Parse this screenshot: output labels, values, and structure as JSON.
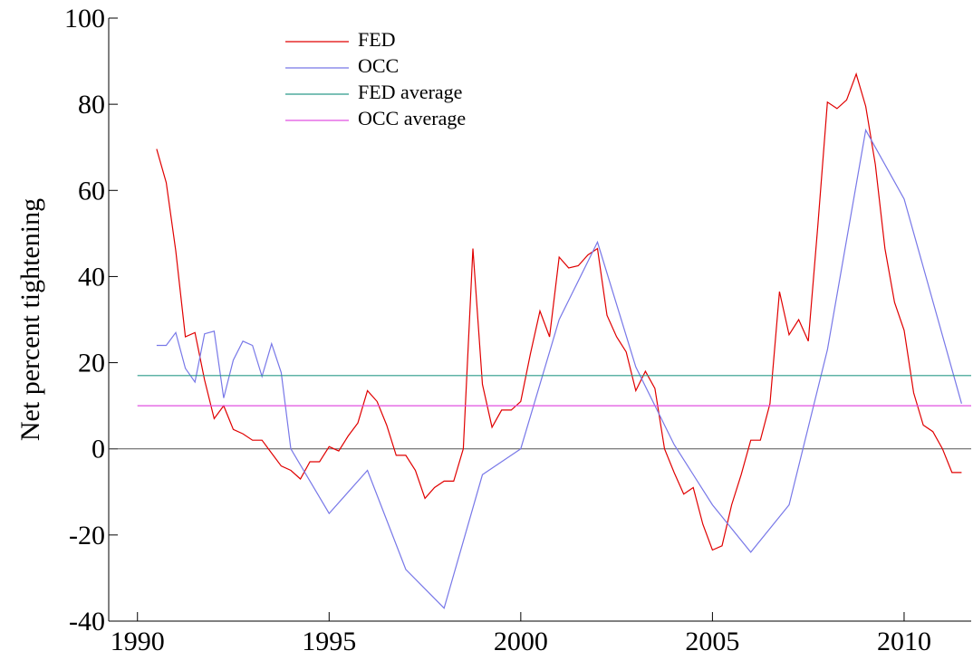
{
  "chart_data": {
    "type": "line",
    "y_label": "Net percent tightening",
    "xlim": [
      1989.25,
      2011.75
    ],
    "xticks": [
      1990,
      1995,
      2000,
      2005,
      2010
    ],
    "ylim": [
      -40,
      100
    ],
    "yticks": [
      -40,
      -20,
      0,
      20,
      40,
      60,
      80,
      100
    ],
    "zero_line": true,
    "legend": "top-center",
    "series": [
      {
        "name": "FED",
        "color": "#e00000",
        "x": [
          1990.5,
          1990.75,
          1991,
          1991.25,
          1991.5,
          1991.75,
          1992,
          1992.25,
          1992.5,
          1992.75,
          1993,
          1993.25,
          1993.5,
          1993.75,
          1994,
          1994.25,
          1994.5,
          1994.75,
          1995,
          1995.25,
          1995.5,
          1995.75,
          1996,
          1996.25,
          1996.5,
          1996.75,
          1997,
          1997.25,
          1997.5,
          1997.75,
          1998,
          1998.25,
          1998.5,
          1998.75,
          1999,
          1999.25,
          1999.5,
          1999.75,
          2000,
          2000.25,
          2000.5,
          2000.75,
          2001,
          2001.25,
          2001.5,
          2001.75,
          2002,
          2002.25,
          2002.5,
          2002.75,
          2003,
          2003.25,
          2003.5,
          2003.75,
          2004,
          2004.25,
          2004.5,
          2004.75,
          2005,
          2005.25,
          2005.5,
          2005.75,
          2006,
          2006.25,
          2006.5,
          2006.75,
          2007,
          2007.25,
          2007.5,
          2007.75,
          2008,
          2008.25,
          2008.5,
          2008.75,
          2009,
          2009.25,
          2009.5,
          2009.75,
          2010,
          2010.25,
          2010.5,
          2010.75,
          2011,
          2011.25,
          2011.5
        ],
        "values": [
          69.6,
          61.8,
          46,
          26,
          27,
          16,
          7,
          10,
          4.5,
          3.5,
          2,
          2,
          -1,
          -4,
          -5,
          -7,
          -3,
          -3,
          0.5,
          -0.5,
          3,
          6,
          13.5,
          11,
          5.5,
          -1.5,
          -1.5,
          -5,
          -11.5,
          -9,
          -7.5,
          -7.5,
          0,
          46.5,
          15,
          5,
          9,
          9,
          11,
          22,
          32,
          26,
          44.5,
          42,
          42.5,
          45,
          46.5,
          31,
          26,
          22.5,
          13.5,
          18,
          14,
          0,
          -5.5,
          -10.5,
          -9,
          -17.5,
          -23.5,
          -22.5,
          -13,
          -6,
          2,
          2,
          10.5,
          36.5,
          26.5,
          30,
          25,
          52,
          80.5,
          79,
          81,
          87,
          79.5,
          66,
          46.5,
          34,
          27.5,
          13,
          5.5,
          4,
          0,
          -5.5,
          -5.5
        ]
      },
      {
        "name": "OCC",
        "color": "#7878e8",
        "x": [
          1990.5,
          1990.75,
          1991,
          1991.25,
          1991.5,
          1991.75,
          1992,
          1992.25,
          1992.5,
          1992.75,
          1993,
          1993.25,
          1993.5,
          1993.75,
          1994,
          1995,
          1996,
          1997,
          1998,
          1999,
          2000,
          2001,
          2002,
          2003,
          2004,
          2005,
          2006,
          2007,
          2008,
          2009,
          2010,
          2011.5
        ],
        "values": [
          24,
          24,
          27,
          18.7,
          15.5,
          26.7,
          27.3,
          11.8,
          20.6,
          25,
          24,
          16.8,
          24.4,
          17.7,
          0,
          -15,
          -5,
          -28,
          -37,
          -6,
          0,
          30,
          48,
          19,
          1,
          -13,
          -24,
          -13,
          23,
          74,
          58,
          10.5
        ]
      },
      {
        "name": "FED average",
        "color": "#2a9a8a",
        "x": [
          1990,
          2011.75
        ],
        "values": [
          17,
          17
        ]
      },
      {
        "name": "OCC average",
        "color": "#e050e0",
        "x": [
          1990,
          2011.75
        ],
        "values": [
          10,
          10
        ]
      }
    ]
  }
}
